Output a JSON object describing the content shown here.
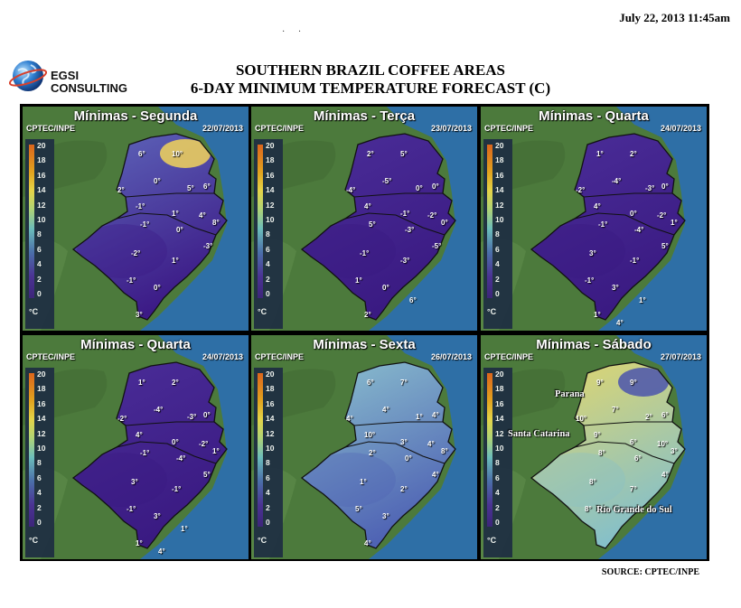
{
  "timestamp": "July 22, 2013 11:45am",
  "logo": {
    "line1": "EGSI",
    "line2": "CONSULTING",
    "icon": "globe-icon"
  },
  "title": {
    "line1": "SOUTHERN BRAZIL COFFEE AREAS",
    "line2": "6-DAY MINIMUM TEMPERATURE FORECAST (C)"
  },
  "source": "SOURCE: CPTEC/INPE",
  "colors": {
    "deep": "#3a1a82",
    "mid": "#5a5fb8",
    "light": "#8fc6cf",
    "warm": "#f0d460",
    "ocean": "#2a6aa0",
    "land": "#4f7a3e"
  },
  "scale": {
    "ticks": [
      "20",
      "18",
      "16",
      "14",
      "12",
      "10",
      "8",
      "6",
      "4",
      "2",
      "0"
    ],
    "unit": "°C"
  },
  "panels": [
    {
      "title": "Mínimas - Segunda",
      "source": "CPTEC/INPE",
      "date": "22/07/2013",
      "theme": "cold-warm-north",
      "labels": [
        "6°",
        "10°",
        "2°",
        "0°",
        "5°",
        "6°",
        "-1°",
        "1°",
        "4°",
        "8°",
        "-1°",
        "0°",
        "-3°",
        "-2°",
        "1°",
        "-1°",
        "0°",
        "3°"
      ]
    },
    {
      "title": "Mínimas - Terça",
      "source": "CPTEC/INPE",
      "date": "23/07/2013",
      "theme": "cold",
      "labels": [
        "2°",
        "5°",
        "-4°",
        "-5°",
        "0°",
        "0°",
        "4°",
        "-1°",
        "-2°",
        "0°",
        "5°",
        "-3°",
        "-5°",
        "-1°",
        "-3°",
        "1°",
        "0°",
        "2°",
        "6°"
      ]
    },
    {
      "title": "Mínimas - Quarta",
      "source": "CPTEC/INPE",
      "date": "24/07/2013",
      "theme": "cold",
      "labels": [
        "1°",
        "2°",
        "-2°",
        "-4°",
        "-3°",
        "0°",
        "4°",
        "0°",
        "-2°",
        "1°",
        "-1°",
        "-4°",
        "5°",
        "3°",
        "-1°",
        "-1°",
        "3°",
        "1°",
        "1°",
        "4°"
      ]
    },
    {
      "title": "Mínimas - Quarta",
      "source": "CPTEC/INPE",
      "date": "24/07/2013",
      "theme": "cold",
      "labels": [
        "1°",
        "2°",
        "-2°",
        "-4°",
        "-3°",
        "0°",
        "4°",
        "0°",
        "-2°",
        "1°",
        "-1°",
        "-4°",
        "5°",
        "3°",
        "-1°",
        "-1°",
        "3°",
        "1°",
        "1°",
        "4°"
      ]
    },
    {
      "title": "Mínimas - Sexta",
      "source": "CPTEC/INPE",
      "date": "26/07/2013",
      "theme": "mild",
      "labels": [
        "6°",
        "7°",
        "4°",
        "4°",
        "1°",
        "4°",
        "10°",
        "3°",
        "4°",
        "8°",
        "2°",
        "0°",
        "4°",
        "1°",
        "2°",
        "5°",
        "3°",
        "4°"
      ]
    },
    {
      "title": "Mínimas - Sábado",
      "source": "CPTEC/INPE",
      "date": "27/07/2013",
      "theme": "warm",
      "labels": [
        "9°",
        "9°",
        "10°",
        "7°",
        "2°",
        "6°",
        "9°",
        "6°",
        "10°",
        "3°",
        "8°",
        "6°",
        "4°",
        "8°",
        "7°",
        "8°"
      ],
      "regions": [
        "Parana",
        "Santa Catarina",
        "Rio Grande do Sul"
      ]
    }
  ]
}
